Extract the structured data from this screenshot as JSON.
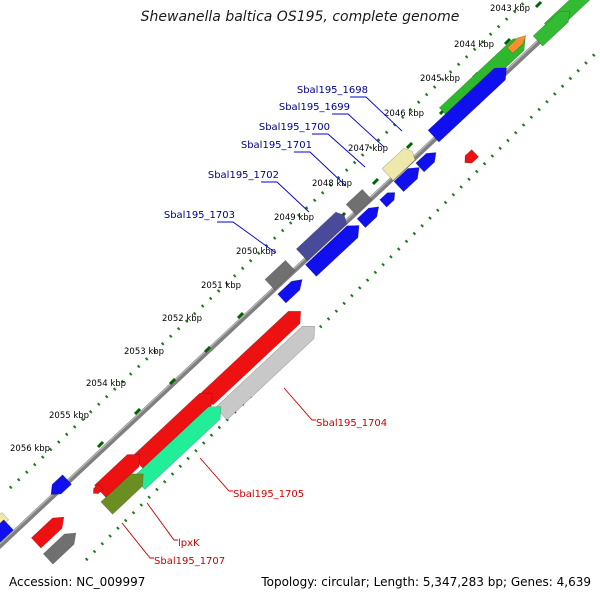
{
  "title": "Shewanella baltica OS195, complete genome",
  "footer": {
    "accession_label": "Accession:",
    "accession": "NC_009997",
    "topology_label": "Topology:",
    "topology": "circular",
    "length_label": "Length:",
    "length": "5,347,283 bp",
    "genes_label": "Genes:",
    "genes": "4,639"
  },
  "colors": {
    "backbone": "#7f7f7f",
    "tick": "#006400",
    "tick_label": "#000000",
    "upper_label": "#00008b",
    "lower_label": "#cc0000",
    "leader_upper": "#0000cc",
    "leader_lower": "#cc0000"
  },
  "kbp_ticks": [
    "2043 kbp",
    "2044 kbp",
    "2045 kbp",
    "2046 kbp",
    "2047 kbp",
    "2048 kbp",
    "2049 kbp",
    "2050 kbp",
    "2051 kbp",
    "2052 kbp",
    "2053 kbp",
    "2054 kbp",
    "2055 kbp",
    "2056 kbp"
  ],
  "upper_labels": [
    "Sbal195_1698",
    "Sbal195_1699",
    "Sbal195_1700",
    "Sbal195_1701",
    "Sbal195_1702",
    "Sbal195_1703"
  ],
  "lower_labels": [
    "Sbal195_1704",
    "Sbal195_1705",
    "lpxK",
    "Sbal195_1707"
  ]
}
